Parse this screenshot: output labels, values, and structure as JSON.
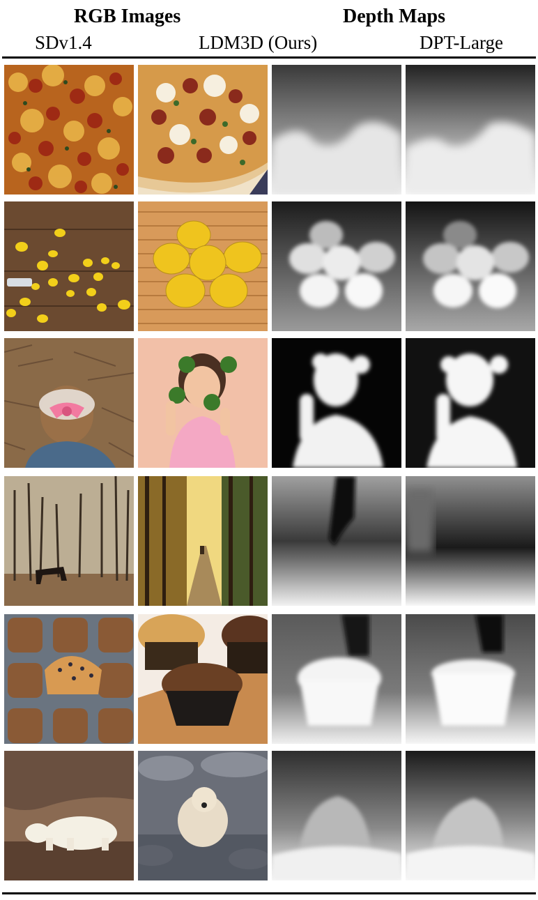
{
  "header": {
    "group_rgb": "RGB Images",
    "group_depth": "Depth Maps",
    "columns": [
      "SDv1.4",
      "LDM3D (Ours)",
      "DPT-Large"
    ]
  },
  "rows": [
    {
      "subject": "pizza",
      "cells": [
        "rgb-sd",
        "rgb-ldm3d",
        "depth-ldm3d",
        "depth-dpt"
      ]
    },
    {
      "subject": "lemons",
      "cells": [
        "rgb-sd",
        "rgb-ldm3d",
        "depth-ldm3d",
        "depth-dpt"
      ]
    },
    {
      "subject": "girl",
      "cells": [
        "rgb-sd",
        "rgb-ldm3d",
        "depth-ldm3d",
        "depth-dpt"
      ]
    },
    {
      "subject": "forest",
      "cells": [
        "rgb-sd",
        "rgb-ldm3d",
        "depth-ldm3d",
        "depth-dpt"
      ]
    },
    {
      "subject": "muffins",
      "cells": [
        "rgb-sd",
        "rgb-ldm3d",
        "depth-ldm3d",
        "depth-dpt"
      ]
    },
    {
      "subject": "polar-bear",
      "cells": [
        "rgb-sd",
        "rgb-ldm3d",
        "depth-ldm3d",
        "depth-dpt"
      ]
    }
  ]
}
